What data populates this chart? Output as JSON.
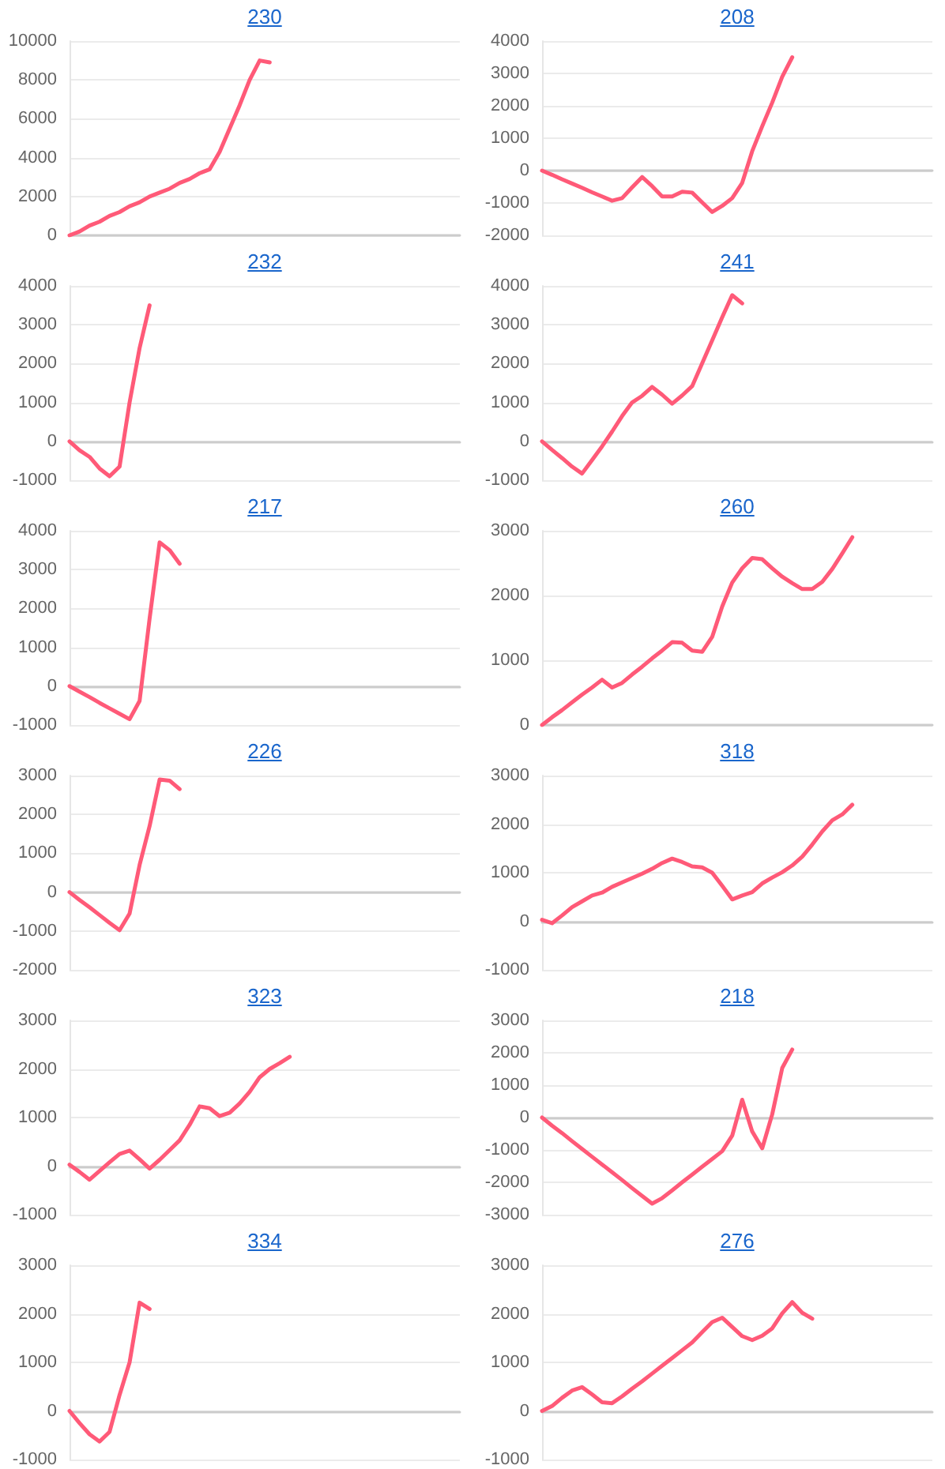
{
  "chart_data": [
    {
      "type": "line",
      "title": "230",
      "categories": [
        null,
        null,
        null,
        null,
        null,
        null,
        null,
        null,
        null,
        null,
        null,
        null,
        null,
        null,
        null,
        null,
        null,
        null,
        null,
        null,
        null,
        null,
        null,
        null,
        null,
        null,
        null,
        null,
        null,
        null,
        null,
        null,
        null,
        null,
        null,
        null,
        null,
        null,
        null,
        null
      ],
      "series": [
        {
          "color": "#ff5a78",
          "values": [
            0,
            200,
            500,
            700,
            1000,
            1200,
            1500,
            1700,
            2000,
            2200,
            2400,
            2700,
            2900,
            3200,
            3400,
            4300,
            5500,
            6700,
            8000,
            9000,
            8900,
            null,
            null,
            null,
            null,
            null,
            null,
            null,
            null,
            null,
            null,
            null,
            null,
            null,
            null,
            null,
            null,
            null,
            null,
            null
          ]
        }
      ],
      "ylim": [
        0,
        10000
      ],
      "yticks": [
        0,
        2000,
        4000,
        6000,
        8000,
        10000
      ],
      "grid": "y",
      "tick_labels": "y"
    },
    {
      "type": "line",
      "title": "208",
      "categories": [
        null,
        null,
        null,
        null,
        null,
        null,
        null,
        null,
        null,
        null,
        null,
        null,
        null,
        null,
        null,
        null,
        null,
        null,
        null,
        null,
        null,
        null,
        null,
        null,
        null,
        null,
        null,
        null,
        null,
        null,
        null,
        null,
        null,
        null,
        null,
        null,
        null,
        null,
        null,
        null
      ],
      "series": [
        {
          "color": "#ff5a78",
          "values": [
            0,
            -130,
            -270,
            -400,
            -530,
            -670,
            -800,
            -930,
            -850,
            -520,
            -200,
            -480,
            -800,
            -800,
            -650,
            -680,
            -980,
            -1280,
            -1090,
            -850,
            -380,
            600,
            1370,
            2100,
            2900,
            3500,
            null,
            null,
            null,
            null,
            null,
            null,
            null,
            null,
            null,
            null,
            null,
            null,
            null,
            null
          ]
        }
      ],
      "ylim": [
        -2000,
        4000
      ],
      "yticks": [
        -2000,
        -1000,
        0,
        1000,
        2000,
        3000,
        4000
      ],
      "grid": "y",
      "tick_labels": "y"
    },
    {
      "type": "line",
      "title": "232",
      "categories": [
        null,
        null,
        null,
        null,
        null,
        null,
        null,
        null,
        null,
        null,
        null,
        null,
        null,
        null,
        null,
        null,
        null,
        null,
        null,
        null,
        null,
        null,
        null,
        null,
        null,
        null,
        null,
        null,
        null,
        null,
        null,
        null,
        null,
        null,
        null,
        null,
        null,
        null,
        null,
        null
      ],
      "series": [
        {
          "color": "#ff5a78",
          "values": [
            0,
            -230,
            -400,
            -700,
            -900,
            -650,
            1000,
            2400,
            3500,
            null,
            null,
            null,
            null,
            null,
            null,
            null,
            null,
            null,
            null,
            null,
            null,
            null,
            null,
            null,
            null,
            null,
            null,
            null,
            null,
            null,
            null,
            null,
            null,
            null,
            null,
            null,
            null,
            null,
            null,
            null
          ]
        }
      ],
      "ylim": [
        -1000,
        4000
      ],
      "yticks": [
        -1000,
        0,
        1000,
        2000,
        3000,
        4000
      ],
      "grid": "y",
      "tick_labels": "y"
    },
    {
      "type": "line",
      "title": "241",
      "categories": [
        null,
        null,
        null,
        null,
        null,
        null,
        null,
        null,
        null,
        null,
        null,
        null,
        null,
        null,
        null,
        null,
        null,
        null,
        null,
        null,
        null,
        null,
        null,
        null,
        null,
        null,
        null,
        null,
        null,
        null,
        null,
        null,
        null,
        null,
        null,
        null,
        null,
        null,
        null,
        null
      ],
      "series": [
        {
          "color": "#ff5a78",
          "values": [
            0,
            -220,
            -430,
            -650,
            -830,
            -480,
            -130,
            250,
            650,
            1000,
            1170,
            1400,
            1200,
            970,
            1180,
            1420,
            2010,
            2600,
            3190,
            3760,
            3550,
            null,
            null,
            null,
            null,
            null,
            null,
            null,
            null,
            null,
            null,
            null,
            null,
            null,
            null,
            null,
            null,
            null,
            null,
            null
          ]
        }
      ],
      "ylim": [
        -1000,
        4000
      ],
      "yticks": [
        -1000,
        0,
        1000,
        2000,
        3000,
        4000
      ],
      "grid": "y",
      "tick_labels": "y"
    },
    {
      "type": "line",
      "title": "217",
      "categories": [
        null,
        null,
        null,
        null,
        null,
        null,
        null,
        null,
        null,
        null,
        null,
        null,
        null,
        null,
        null,
        null,
        null,
        null,
        null,
        null,
        null,
        null,
        null,
        null,
        null,
        null,
        null,
        null,
        null,
        null,
        null,
        null,
        null,
        null,
        null,
        null,
        null,
        null,
        null,
        null
      ],
      "series": [
        {
          "color": "#ff5a78",
          "values": [
            0,
            -140,
            -280,
            -430,
            -570,
            -710,
            -850,
            -380,
            1740,
            3700,
            3500,
            3150,
            null,
            null,
            null,
            null,
            null,
            null,
            null,
            null,
            null,
            null,
            null,
            null,
            null,
            null,
            null,
            null,
            null,
            null,
            null,
            null,
            null,
            null,
            null,
            null,
            null,
            null,
            null,
            null
          ]
        }
      ],
      "ylim": [
        -1000,
        4000
      ],
      "yticks": [
        -1000,
        0,
        1000,
        2000,
        3000,
        4000
      ],
      "grid": "y",
      "tick_labels": "y"
    },
    {
      "type": "line",
      "title": "260",
      "categories": [
        null,
        null,
        null,
        null,
        null,
        null,
        null,
        null,
        null,
        null,
        null,
        null,
        null,
        null,
        null,
        null,
        null,
        null,
        null,
        null,
        null,
        null,
        null,
        null,
        null,
        null,
        null,
        null,
        null,
        null,
        null,
        null,
        null,
        null,
        null,
        null,
        null,
        null,
        null,
        null
      ],
      "series": [
        {
          "color": "#ff5a78",
          "values": [
            0,
            120,
            230,
            350,
            470,
            580,
            700,
            580,
            650,
            780,
            900,
            1030,
            1150,
            1280,
            1270,
            1150,
            1130,
            1360,
            1830,
            2200,
            2420,
            2580,
            2560,
            2420,
            2290,
            2190,
            2100,
            2100,
            2210,
            2410,
            2650,
            2900,
            null,
            null,
            null,
            null,
            null,
            null,
            null,
            null
          ]
        }
      ],
      "ylim": [
        0,
        3000
      ],
      "yticks": [
        0,
        1000,
        2000,
        3000
      ],
      "grid": "y",
      "tick_labels": "y"
    },
    {
      "type": "line",
      "title": "226",
      "categories": [
        null,
        null,
        null,
        null,
        null,
        null,
        null,
        null,
        null,
        null,
        null,
        null,
        null,
        null,
        null,
        null,
        null,
        null,
        null,
        null,
        null,
        null,
        null,
        null,
        null,
        null,
        null,
        null,
        null,
        null,
        null,
        null,
        null,
        null,
        null,
        null,
        null,
        null,
        null,
        null
      ],
      "series": [
        {
          "color": "#ff5a78",
          "values": [
            0,
            -200,
            -390,
            -590,
            -790,
            -980,
            -550,
            700,
            1700,
            2900,
            2870,
            2650,
            null,
            null,
            null,
            null,
            null,
            null,
            null,
            null,
            null,
            null,
            null,
            null,
            null,
            null,
            null,
            null,
            null,
            null,
            null,
            null,
            null,
            null,
            null,
            null,
            null,
            null,
            null,
            null
          ]
        }
      ],
      "ylim": [
        -2000,
        3000
      ],
      "yticks": [
        -2000,
        -1000,
        0,
        1000,
        2000,
        3000
      ],
      "grid": "y",
      "tick_labels": "y"
    },
    {
      "type": "line",
      "title": "318",
      "categories": [
        null,
        null,
        null,
        null,
        null,
        null,
        null,
        null,
        null,
        null,
        null,
        null,
        null,
        null,
        null,
        null,
        null,
        null,
        null,
        null,
        null,
        null,
        null,
        null,
        null,
        null,
        null,
        null,
        null,
        null,
        null,
        null,
        null,
        null,
        null,
        null,
        null,
        null,
        null,
        null
      ],
      "series": [
        {
          "color": "#ff5a78",
          "values": [
            30,
            -40,
            120,
            290,
            410,
            530,
            590,
            710,
            800,
            890,
            980,
            1080,
            1200,
            1290,
            1220,
            1130,
            1110,
            1000,
            730,
            450,
            530,
            600,
            780,
            900,
            1010,
            1150,
            1330,
            1580,
            1850,
            2080,
            2200,
            2400,
            null,
            null,
            null,
            null,
            null,
            null,
            null,
            null
          ]
        }
      ],
      "ylim": [
        -1000,
        3000
      ],
      "yticks": [
        -1000,
        0,
        1000,
        2000,
        3000
      ],
      "grid": "y",
      "tick_labels": "y"
    },
    {
      "type": "line",
      "title": "323",
      "categories": [
        null,
        null,
        null,
        null,
        null,
        null,
        null,
        null,
        null,
        null,
        null,
        null,
        null,
        null,
        null,
        null,
        null,
        null,
        null,
        null,
        null,
        null,
        null,
        null,
        null,
        null,
        null,
        null,
        null,
        null,
        null,
        null,
        null,
        null,
        null,
        null,
        null,
        null,
        null,
        null
      ],
      "series": [
        {
          "color": "#ff5a78",
          "values": [
            30,
            -120,
            -280,
            -100,
            80,
            250,
            320,
            140,
            -50,
            130,
            330,
            530,
            850,
            1230,
            1190,
            1030,
            1100,
            1290,
            1530,
            1830,
            2000,
            2120,
            2250,
            null,
            null,
            null,
            null,
            null,
            null,
            null,
            null,
            null,
            null,
            null,
            null,
            null,
            null,
            null,
            null,
            null
          ]
        }
      ],
      "ylim": [
        -1000,
        3000
      ],
      "yticks": [
        -1000,
        0,
        1000,
        2000,
        3000
      ],
      "grid": "y",
      "tick_labels": "y"
    },
    {
      "type": "line",
      "title": "218",
      "categories": [
        null,
        null,
        null,
        null,
        null,
        null,
        null,
        null,
        null,
        null,
        null,
        null,
        null,
        null,
        null,
        null,
        null,
        null,
        null,
        null,
        null,
        null,
        null,
        null,
        null,
        null,
        null,
        null,
        null,
        null,
        null,
        null,
        null,
        null,
        null,
        null,
        null,
        null,
        null,
        null
      ],
      "series": [
        {
          "color": "#ff5a78",
          "values": [
            0,
            -250,
            -480,
            -730,
            -970,
            -1210,
            -1450,
            -1690,
            -1930,
            -2180,
            -2420,
            -2660,
            -2490,
            -2250,
            -2000,
            -1760,
            -1520,
            -1280,
            -1040,
            -560,
            550,
            -430,
            -950,
            100,
            1530,
            2100,
            null,
            null,
            null,
            null,
            null,
            null,
            null,
            null,
            null,
            null,
            null,
            null,
            null,
            null
          ]
        }
      ],
      "ylim": [
        -3000,
        3000
      ],
      "yticks": [
        -3000,
        -2000,
        -1000,
        0,
        1000,
        2000,
        3000
      ],
      "grid": "y",
      "tick_labels": "y"
    },
    {
      "type": "line",
      "title": "334",
      "categories": [
        null,
        null,
        null,
        null,
        null,
        null,
        null,
        null,
        null,
        null,
        null,
        null,
        null,
        null,
        null,
        null,
        null,
        null,
        null,
        null,
        null,
        null,
        null,
        null,
        null,
        null,
        null,
        null,
        null,
        null,
        null,
        null,
        null,
        null,
        null,
        null,
        null,
        null,
        null,
        null
      ],
      "series": [
        {
          "color": "#ff5a78",
          "values": [
            0,
            -250,
            -480,
            -630,
            -430,
            330,
            1000,
            2230,
            2100,
            null,
            null,
            null,
            null,
            null,
            null,
            null,
            null,
            null,
            null,
            null,
            null,
            null,
            null,
            null,
            null,
            null,
            null,
            null,
            null,
            null,
            null,
            null,
            null,
            null,
            null,
            null,
            null,
            null,
            null,
            null
          ]
        }
      ],
      "ylim": [
        -1000,
        3000
      ],
      "yticks": [
        -1000,
        0,
        1000,
        2000,
        3000
      ],
      "grid": "y",
      "tick_labels": "y"
    },
    {
      "type": "line",
      "title": "276",
      "categories": [
        null,
        null,
        null,
        null,
        null,
        null,
        null,
        null,
        null,
        null,
        null,
        null,
        null,
        null,
        null,
        null,
        null,
        null,
        null,
        null,
        null,
        null,
        null,
        null,
        null,
        null,
        null,
        null,
        null,
        null,
        null,
        null,
        null,
        null,
        null,
        null,
        null,
        null,
        null,
        null
      ],
      "series": [
        {
          "color": "#ff5a78",
          "values": [
            0,
            100,
            270,
            420,
            490,
            340,
            180,
            160,
            300,
            460,
            610,
            770,
            930,
            1090,
            1250,
            1410,
            1620,
            1830,
            1920,
            1730,
            1540,
            1460,
            1550,
            1700,
            2010,
            2240,
            2020,
            1900,
            null,
            null,
            null,
            null,
            null,
            null,
            null,
            null,
            null,
            null,
            null,
            null
          ]
        }
      ],
      "ylim": [
        -1000,
        3000
      ],
      "yticks": [
        -1000,
        0,
        1000,
        2000,
        3000
      ],
      "grid": "y",
      "tick_labels": "y"
    }
  ]
}
